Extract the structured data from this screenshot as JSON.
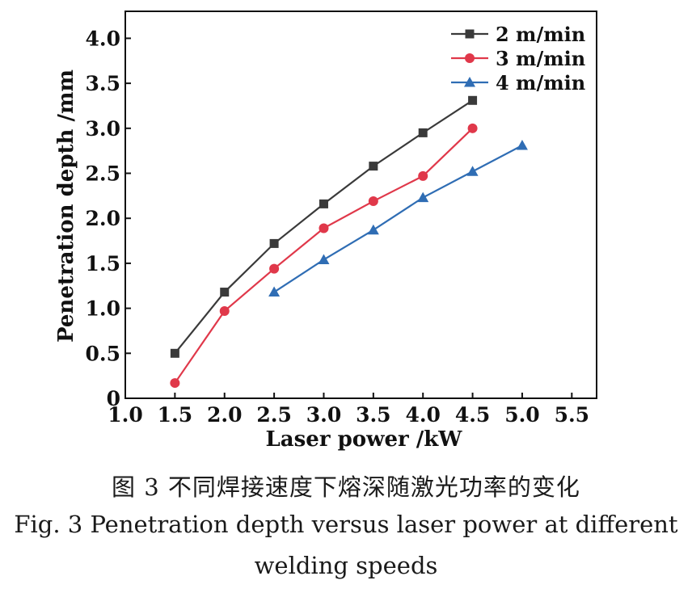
{
  "chart_data": {
    "type": "line",
    "xlabel": "Laser power /kW",
    "ylabel": "Penetration depth /mm",
    "xlim": [
      1.0,
      5.75
    ],
    "ylim": [
      0,
      4.3
    ],
    "xticks": [
      "1.0",
      "1.5",
      "2.0",
      "2.5",
      "3.0",
      "3.5",
      "4.0",
      "4.5",
      "5.0",
      "5.5"
    ],
    "yticks": [
      "0",
      "0.5",
      "1.0",
      "1.5",
      "2.0",
      "2.5",
      "3.0",
      "3.5",
      "4.0"
    ],
    "grid": false,
    "legend_position": "top-right",
    "series": [
      {
        "name": "2 m/min",
        "color": "#3a3a3a",
        "marker": "square",
        "x": [
          1.5,
          2.0,
          2.5,
          3.0,
          3.5,
          4.0,
          4.5
        ],
        "y": [
          0.5,
          1.18,
          1.72,
          2.16,
          2.58,
          2.95,
          3.31
        ]
      },
      {
        "name": "3 m/min",
        "color": "#e0384a",
        "marker": "circle",
        "x": [
          1.5,
          2.0,
          2.5,
          3.0,
          3.5,
          4.0,
          4.5
        ],
        "y": [
          0.17,
          0.97,
          1.44,
          1.89,
          2.19,
          2.47,
          3.0
        ]
      },
      {
        "name": "4 m/min",
        "color": "#2f6db4",
        "marker": "triangle",
        "x": [
          2.5,
          3.0,
          3.5,
          4.0,
          4.5,
          5.0
        ],
        "y": [
          1.18,
          1.54,
          1.87,
          2.23,
          2.52,
          2.81
        ]
      }
    ]
  },
  "caption": {
    "chinese": "图 3  不同焊接速度下熔深随激光功率的变化",
    "english_line1": "Fig. 3  Penetration depth versus laser power at different",
    "english_line2": "welding speeds"
  }
}
